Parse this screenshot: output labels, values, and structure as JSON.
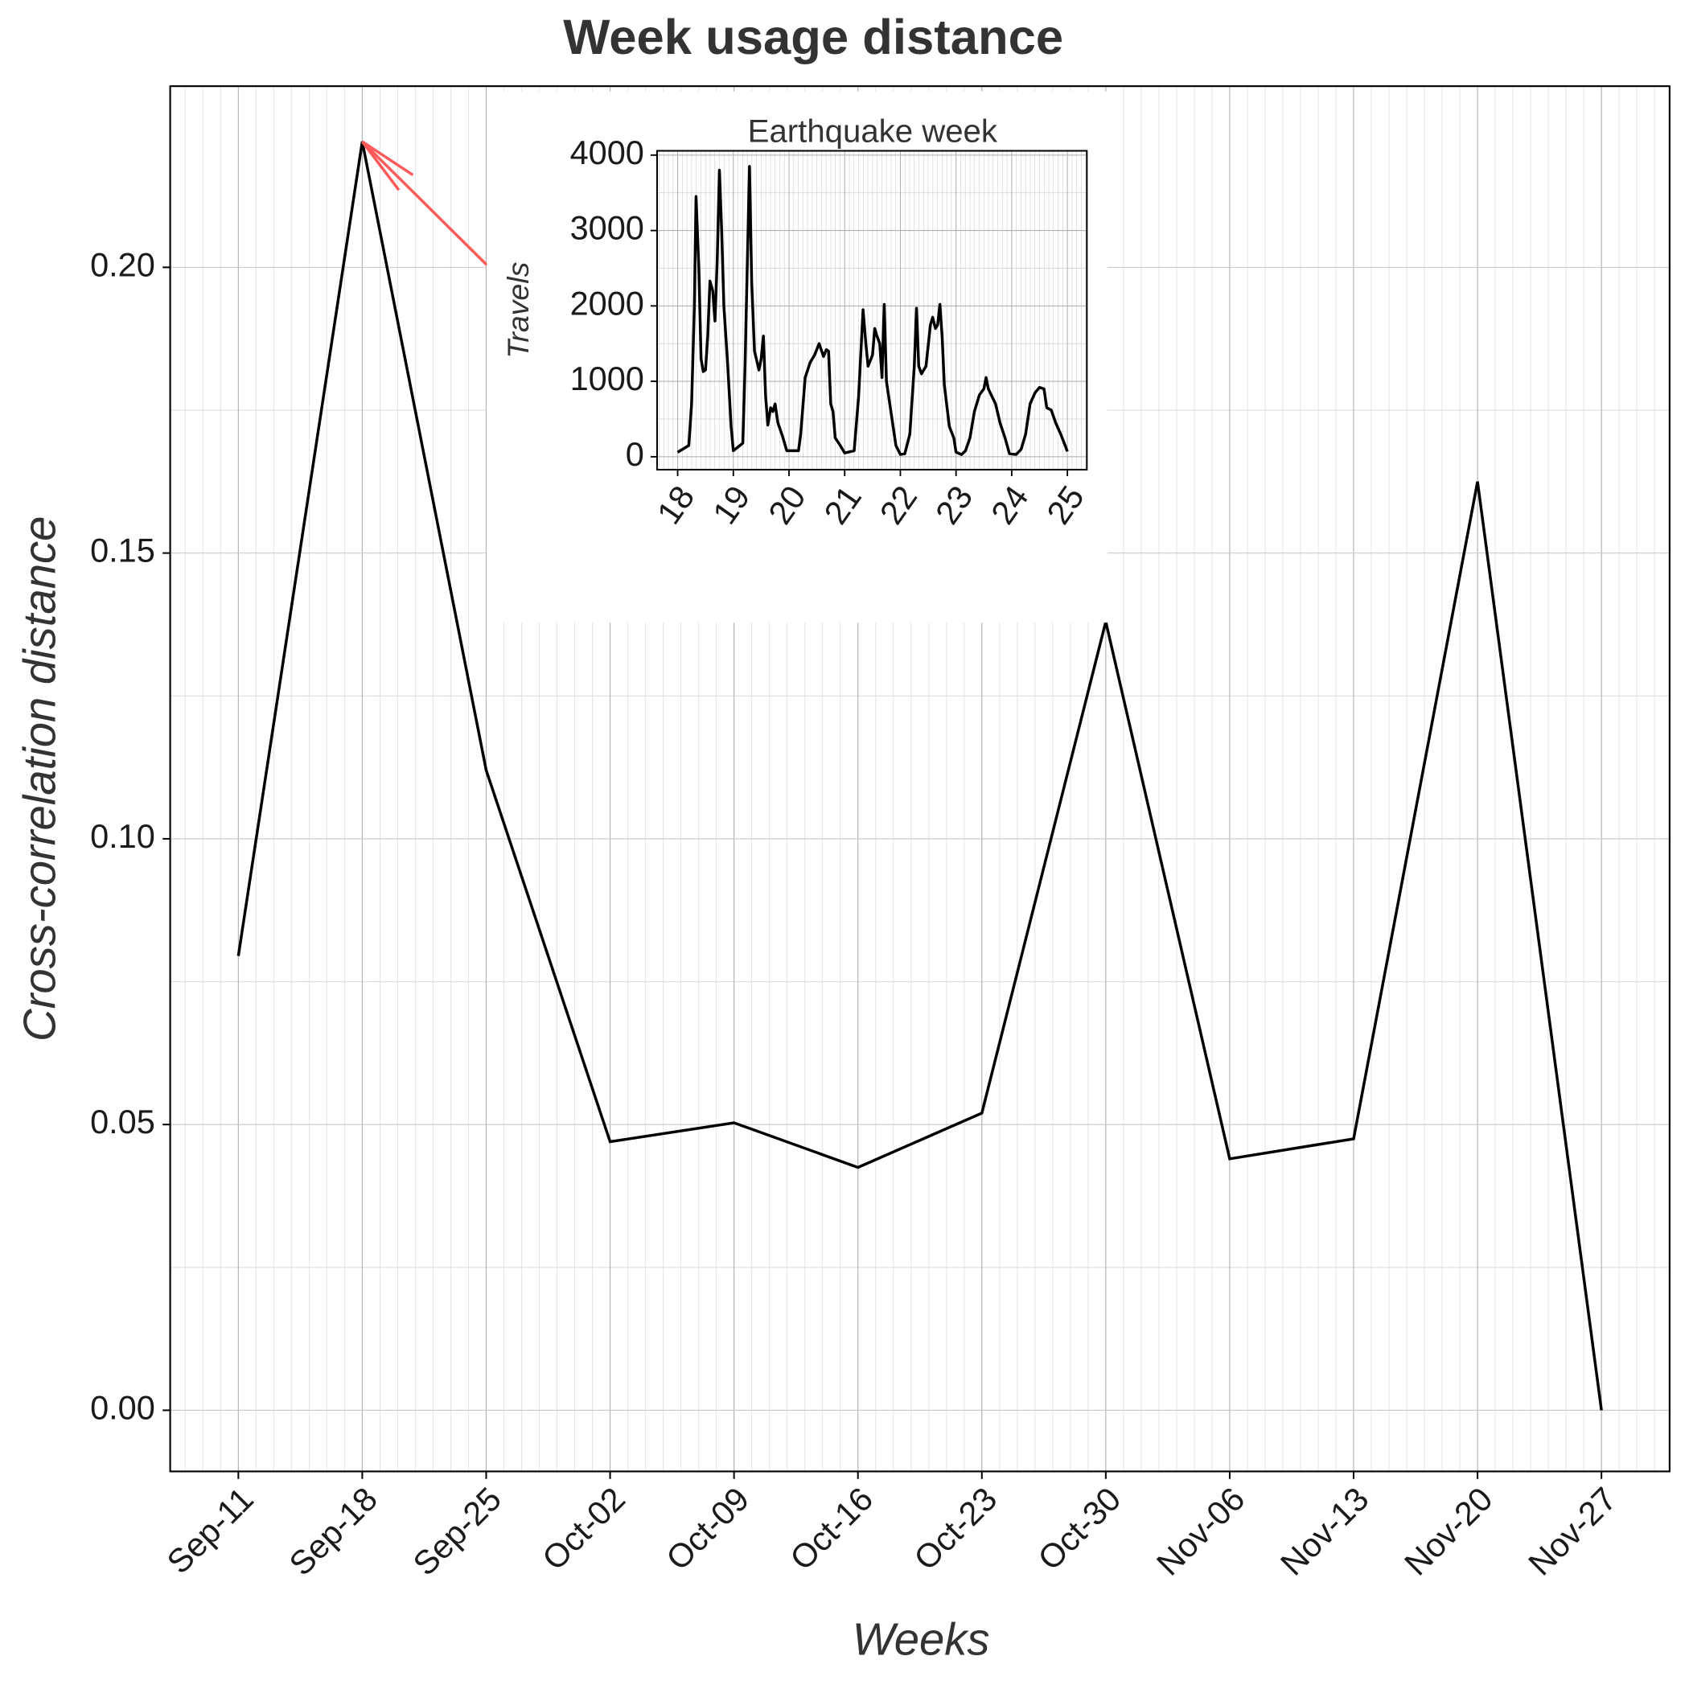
{
  "chart_data": [
    {
      "type": "line",
      "title": "Week usage distance",
      "x_label": "Weeks",
      "y_label": "Cross-correlation distance",
      "categories": [
        "Sep-11",
        "Sep-18",
        "Sep-25",
        "Oct-02",
        "Oct-09",
        "Oct-16",
        "Oct-23",
        "Oct-30",
        "Nov-06",
        "Nov-13",
        "Nov-20",
        "Nov-27"
      ],
      "values": [
        0.0795,
        0.222,
        0.112,
        0.047,
        0.0503,
        0.0425,
        0.052,
        0.138,
        0.044,
        0.0475,
        0.1625,
        0.0
      ],
      "color": "#000000",
      "ylim": [
        -0.0107,
        0.2317
      ],
      "yticks": [
        {
          "value": 0,
          "label": "0.00"
        },
        {
          "value": 0.05,
          "label": "0.05"
        },
        {
          "value": 0.1,
          "label": "0.10"
        },
        {
          "value": 0.15,
          "label": "0.15"
        },
        {
          "value": 0.2,
          "label": "0.20"
        }
      ],
      "grid": true,
      "annotation_color": "#ff5a5a"
    },
    {
      "type": "line",
      "title": "Earthquake week",
      "y_label": "Travels",
      "x": [
        18.0,
        18.2,
        18.25,
        18.3,
        18.33,
        18.38,
        18.42,
        18.46,
        18.5,
        18.54,
        18.58,
        18.63,
        18.67,
        18.71,
        18.75,
        18.79,
        18.83,
        18.9,
        18.96,
        19.0,
        19.17,
        19.21,
        19.29,
        19.33,
        19.38,
        19.46,
        19.5,
        19.54,
        19.58,
        19.62,
        19.67,
        19.71,
        19.75,
        19.8,
        19.88,
        19.96,
        20.0,
        20.17,
        20.21,
        20.29,
        20.38,
        20.46,
        20.54,
        20.62,
        20.67,
        20.71,
        20.75,
        20.79,
        20.83,
        20.92,
        21.0,
        21.17,
        21.25,
        21.33,
        21.38,
        21.42,
        21.5,
        21.54,
        21.58,
        21.63,
        21.67,
        21.71,
        21.75,
        21.83,
        21.92,
        22.0,
        22.08,
        22.17,
        22.25,
        22.29,
        22.33,
        22.38,
        22.46,
        22.54,
        22.58,
        22.63,
        22.67,
        22.71,
        22.75,
        22.79,
        22.88,
        22.96,
        23.0,
        23.1,
        23.17,
        23.25,
        23.33,
        23.42,
        23.5,
        23.54,
        23.58,
        23.71,
        23.79,
        23.88,
        23.96,
        24.08,
        24.17,
        24.25,
        24.33,
        24.42,
        24.5,
        24.58,
        24.63,
        24.71,
        24.79,
        24.88,
        24.96,
        25.0
      ],
      "values": [
        60,
        150,
        700,
        2000,
        3450,
        2500,
        1300,
        1130,
        1150,
        1600,
        2330,
        2200,
        1800,
        2600,
        3800,
        3000,
        2000,
        1200,
        400,
        80,
        180,
        1200,
        3850,
        2300,
        1400,
        1150,
        1300,
        1600,
        800,
        420,
        650,
        600,
        700,
        450,
        280,
        80,
        80,
        80,
        300,
        1050,
        1250,
        1350,
        1500,
        1330,
        1420,
        1400,
        700,
        600,
        250,
        150,
        50,
        80,
        800,
        1950,
        1500,
        1200,
        1350,
        1700,
        1600,
        1500,
        1050,
        2020,
        1000,
        600,
        150,
        30,
        40,
        300,
        1200,
        1970,
        1200,
        1100,
        1200,
        1750,
        1850,
        1700,
        1750,
        2020,
        1600,
        950,
        400,
        250,
        60,
        30,
        80,
        250,
        600,
        820,
        900,
        1050,
        900,
        700,
        450,
        250,
        40,
        30,
        100,
        300,
        700,
        850,
        920,
        900,
        650,
        620,
        450,
        300,
        150,
        70
      ],
      "color": "#000000",
      "xlim": [
        17.63,
        25.35
      ],
      "ylim": [
        -171,
        4057
      ],
      "xticks": [
        18,
        19,
        20,
        21,
        22,
        23,
        24,
        25
      ],
      "yticks": [
        0,
        1000,
        2000,
        3000,
        4000
      ],
      "grid": true
    }
  ]
}
